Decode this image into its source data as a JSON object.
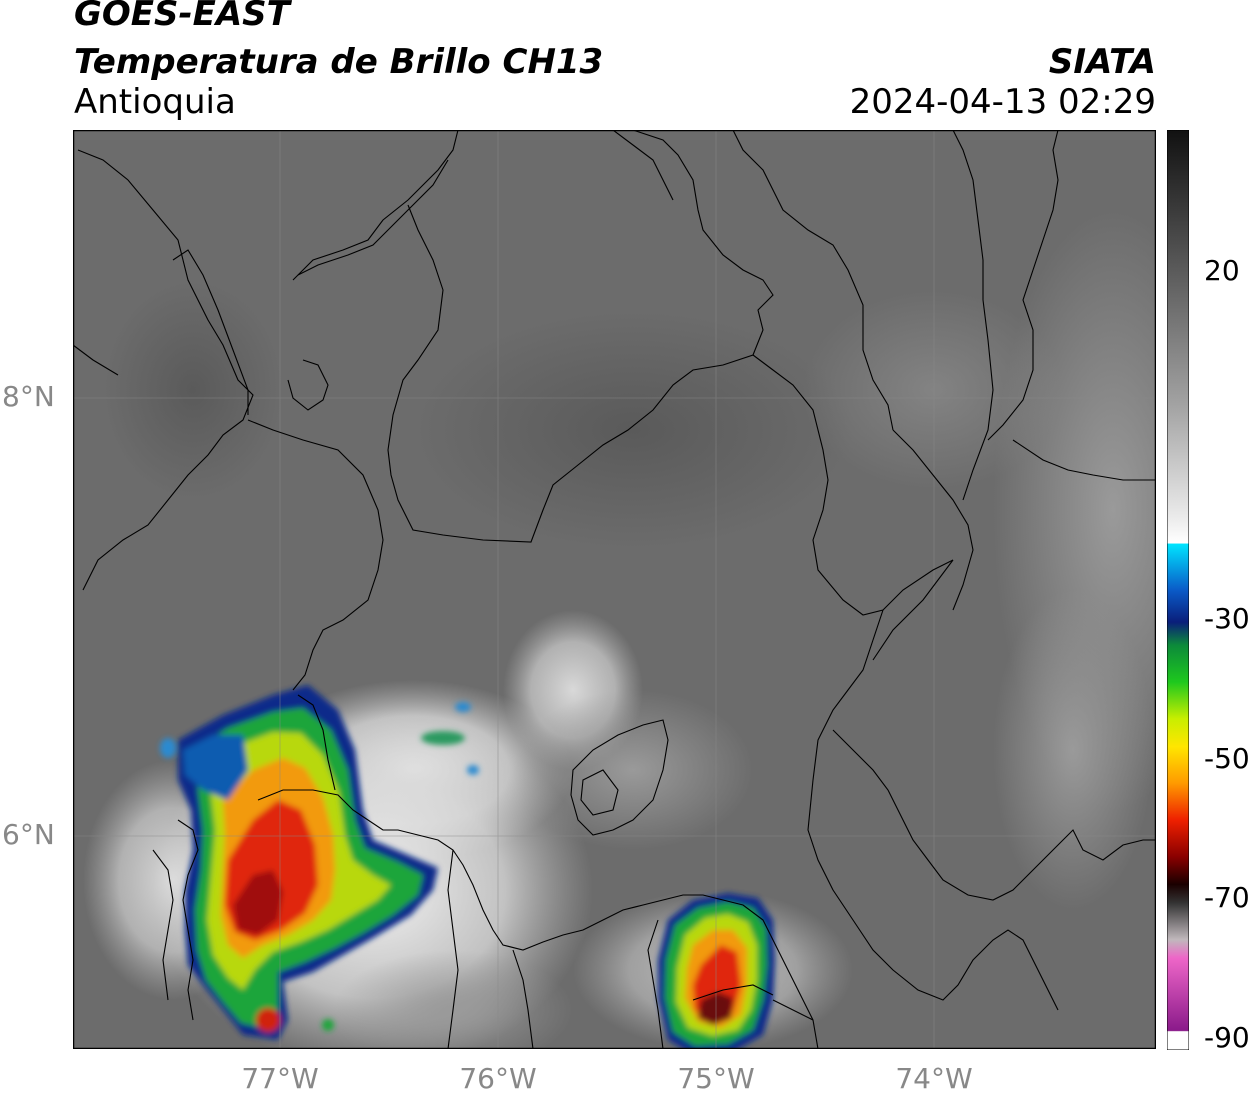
{
  "header": {
    "satellite": "GOES-EAST",
    "product": "Temperatura de Brillo CH13",
    "region": "Antioquia",
    "organization": "SIATA",
    "datetime": "2024-04-13 02:29"
  },
  "axes": {
    "lat_ticks": [
      {
        "label": "8°N",
        "value": 8
      },
      {
        "label": "6°N",
        "value": 6
      }
    ],
    "lon_ticks": [
      {
        "label": "77°W",
        "value": -77
      },
      {
        "label": "76°W",
        "value": -76
      },
      {
        "label": "75°W",
        "value": -75
      },
      {
        "label": "74°W",
        "value": -74
      }
    ],
    "lon_range": [
      -77.95,
      -73.0
    ],
    "lat_range": [
      5.0,
      9.2
    ]
  },
  "colorbar": {
    "ticks": [
      {
        "label": "20",
        "value": 20
      },
      {
        "label": "-30",
        "value": -30
      },
      {
        "label": "-50",
        "value": -50
      },
      {
        "label": "-70",
        "value": -70
      },
      {
        "label": "-90",
        "value": -90
      }
    ],
    "range": [
      -92,
      36
    ],
    "units": ""
  },
  "colors": {
    "background_gray": "#6b6b6b",
    "border_line": "#000000",
    "grid_line": "#8a8a8a"
  }
}
